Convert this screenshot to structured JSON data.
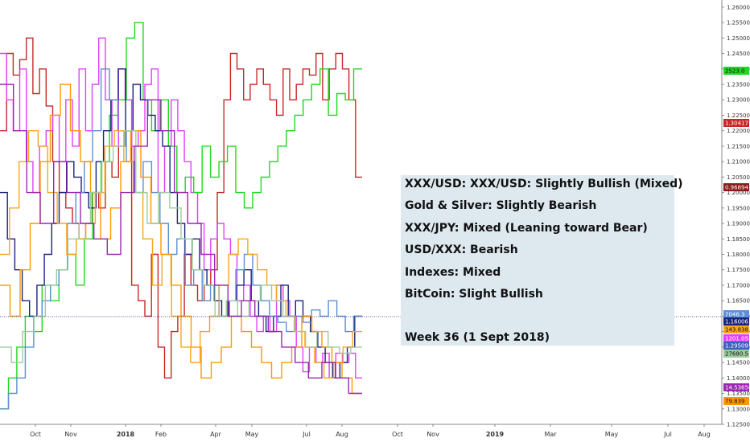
{
  "summary": {
    "lines": [
      "XXX/USD: XXX/USD: Slightly Bullish (Mixed)",
      "Gold & Silver: Slightly Bearish",
      "XXX/JPY: Mixed (Leaning toward Bear)",
      "USD/XXX: Bearish",
      "Indexes: Mixed",
      "BitCoin: Slight Bullish"
    ],
    "week": "Week 36 (1 Sept 2018)"
  },
  "chart_data": {
    "type": "line",
    "x_ticks": [
      "Oct",
      "Nov",
      "2018",
      "Feb",
      "Apr",
      "May",
      "Jul",
      "Aug",
      "Oct",
      "Nov",
      "2019",
      "Mar",
      "May",
      "Jul",
      "Aug"
    ],
    "bold_ticks": [
      "2018",
      "2019"
    ],
    "y_ticks": [
      "1.26000",
      "1.25500",
      "1.25000",
      "1.24500",
      "1.24000",
      "1.23500",
      "1.23000",
      "1.22500",
      "1.22000",
      "1.21500",
      "1.21000",
      "1.20500",
      "1.20000",
      "1.19500",
      "1.19000",
      "1.18500",
      "1.18000",
      "1.17500",
      "1.17000",
      "1.16500",
      "1.16000",
      "1.15500",
      "1.15000",
      "1.14500",
      "1.14000",
      "1.13500",
      "1.13000",
      "1.12500"
    ],
    "ylim": [
      1.125,
      1.261
    ],
    "last_values": [
      {
        "label": "2523.0",
        "color": "#1fd81f"
      },
      {
        "label": "1.30417",
        "color": "#c62828"
      },
      {
        "label": "0.96894",
        "color": "#8b1a1a"
      },
      {
        "label": "7046.3",
        "color": "#5b8fd6"
      },
      {
        "label": "1.16006",
        "color": "#1a237e"
      },
      {
        "label": "143.838",
        "color": "#f5a623"
      },
      {
        "label": "1201.055",
        "color": "#e040fb"
      },
      {
        "label": "1.29509",
        "color": "#3f5fbf"
      },
      {
        "label": "27680.5",
        "color": "#9ccc9c"
      },
      {
        "label": "14.53650",
        "color": "#9c27b0"
      },
      {
        "label": "79.839",
        "color": "#ff9800"
      }
    ],
    "series": [
      {
        "color": "#c62828",
        "values": [
          1.22,
          1.245,
          1.238,
          1.243,
          1.25,
          1.232,
          1.24,
          1.228,
          1.21,
          1.2,
          1.195,
          1.19,
          1.185,
          1.19,
          1.2,
          1.195,
          1.21,
          1.205,
          1.215,
          1.22,
          1.17,
          1.165,
          1.16,
          1.18,
          1.15,
          1.14,
          1.155,
          1.16,
          1.18,
          1.17,
          1.165,
          1.17,
          1.175,
          1.2,
          1.23,
          1.245,
          1.24,
          1.23,
          1.235,
          1.24,
          1.235,
          1.23,
          1.225,
          1.24,
          1.23,
          1.235,
          1.24,
          1.238,
          1.245,
          1.23,
          1.24,
          1.245,
          1.24,
          1.23,
          1.205
        ]
      },
      {
        "color": "#e040fb",
        "values": [
          1.245,
          1.23,
          1.22,
          1.24,
          1.21,
          1.2,
          1.215,
          1.22,
          1.225,
          1.21,
          1.23,
          1.215,
          1.24,
          1.22,
          1.235,
          1.25,
          1.23,
          1.215,
          1.24,
          1.23,
          1.215,
          1.22,
          1.235,
          1.24,
          1.2,
          1.215,
          1.23,
          1.22,
          1.21,
          1.2,
          1.19,
          1.175,
          1.185,
          1.19,
          1.185,
          1.18,
          1.165,
          1.17,
          1.16,
          1.155,
          1.16,
          1.155,
          1.17,
          1.165,
          1.16,
          1.15,
          1.142,
          1.15,
          1.145,
          1.148,
          1.14,
          1.148,
          1.145,
          1.148,
          1.14
        ]
      },
      {
        "color": "#1fd81f",
        "values": [
          1.13,
          1.14,
          1.15,
          1.16,
          1.155,
          1.17,
          1.165,
          1.175,
          1.18,
          1.17,
          1.185,
          1.2,
          1.21,
          1.225,
          1.23,
          1.25,
          1.255,
          1.23,
          1.22,
          1.23,
          1.215,
          1.2,
          1.205,
          1.2,
          1.215,
          1.205,
          1.21,
          1.215,
          1.2,
          1.195,
          1.2,
          1.205,
          1.21,
          1.215,
          1.22,
          1.225,
          1.23,
          1.235,
          1.24,
          1.225,
          1.232,
          1.23,
          1.24
        ]
      },
      {
        "color": "#1a237e",
        "values": [
          1.2,
          1.185,
          1.175,
          1.165,
          1.16,
          1.17,
          1.18,
          1.19,
          1.2,
          1.21,
          1.205,
          1.2,
          1.195,
          1.21,
          1.22,
          1.23,
          1.24,
          1.22,
          1.235,
          1.23,
          1.225,
          1.22,
          1.215,
          1.2,
          1.19,
          1.18,
          1.185,
          1.175,
          1.17,
          1.165,
          1.16,
          1.165,
          1.17,
          1.175,
          1.165,
          1.16,
          1.155,
          1.16,
          1.17,
          1.16,
          1.165,
          1.16,
          1.155,
          1.15,
          1.145,
          1.14,
          1.145,
          1.15,
          1.16
        ]
      },
      {
        "color": "#5b8fd6",
        "values": [
          1.13,
          1.135,
          1.14,
          1.15,
          1.16,
          1.165,
          1.17,
          1.175,
          1.19,
          1.2,
          1.21,
          1.22,
          1.24,
          1.23,
          1.22,
          1.21,
          1.2,
          1.21,
          1.2,
          1.19,
          1.18,
          1.185,
          1.17,
          1.175,
          1.165,
          1.17,
          1.16,
          1.165,
          1.175,
          1.18,
          1.17,
          1.165,
          1.16,
          1.158,
          1.155,
          1.16,
          1.158,
          1.162,
          1.16,
          1.165,
          1.16,
          1.155,
          1.16
        ]
      },
      {
        "color": "#f5a623",
        "values": [
          1.18,
          1.195,
          1.21,
          1.22,
          1.215,
          1.2,
          1.19,
          1.18,
          1.185,
          1.19,
          1.2,
          1.215,
          1.22,
          1.21,
          1.2,
          1.185,
          1.17,
          1.18,
          1.16,
          1.15,
          1.145,
          1.155,
          1.16,
          1.17,
          1.18,
          1.185,
          1.18,
          1.175,
          1.17,
          1.165,
          1.16,
          1.155,
          1.15,
          1.145,
          1.14,
          1.145,
          1.15,
          1.155
        ]
      },
      {
        "color": "#ff9800",
        "values": [
          1.17,
          1.16,
          1.175,
          1.19,
          1.21,
          1.225,
          1.235,
          1.22,
          1.21,
          1.2,
          1.185,
          1.195,
          1.21,
          1.22,
          1.205,
          1.19,
          1.18,
          1.17,
          1.16,
          1.15,
          1.14,
          1.145,
          1.15,
          1.16,
          1.155,
          1.15,
          1.145,
          1.14,
          1.145,
          1.15,
          1.16,
          1.155,
          1.15,
          1.145,
          1.14,
          1.135
        ]
      },
      {
        "color": "#9ccc9c",
        "values": [
          1.15,
          1.145,
          1.155,
          1.16,
          1.17,
          1.175,
          1.185,
          1.19,
          1.2,
          1.21,
          1.215,
          1.22,
          1.2,
          1.19,
          1.2,
          1.195,
          1.185,
          1.175,
          1.17,
          1.16,
          1.165,
          1.16,
          1.165,
          1.17,
          1.165,
          1.16,
          1.155,
          1.15,
          1.155,
          1.15,
          1.148,
          1.15
        ]
      },
      {
        "color": "#9c27b0",
        "values": [
          1.235,
          1.22,
          1.2,
          1.19,
          1.21,
          1.2,
          1.19,
          1.185,
          1.18,
          1.2,
          1.215,
          1.23,
          1.22,
          1.2,
          1.19,
          1.18,
          1.17,
          1.16,
          1.165,
          1.16,
          1.155,
          1.15,
          1.145,
          1.14,
          1.145,
          1.14,
          1.135
        ]
      }
    ]
  }
}
